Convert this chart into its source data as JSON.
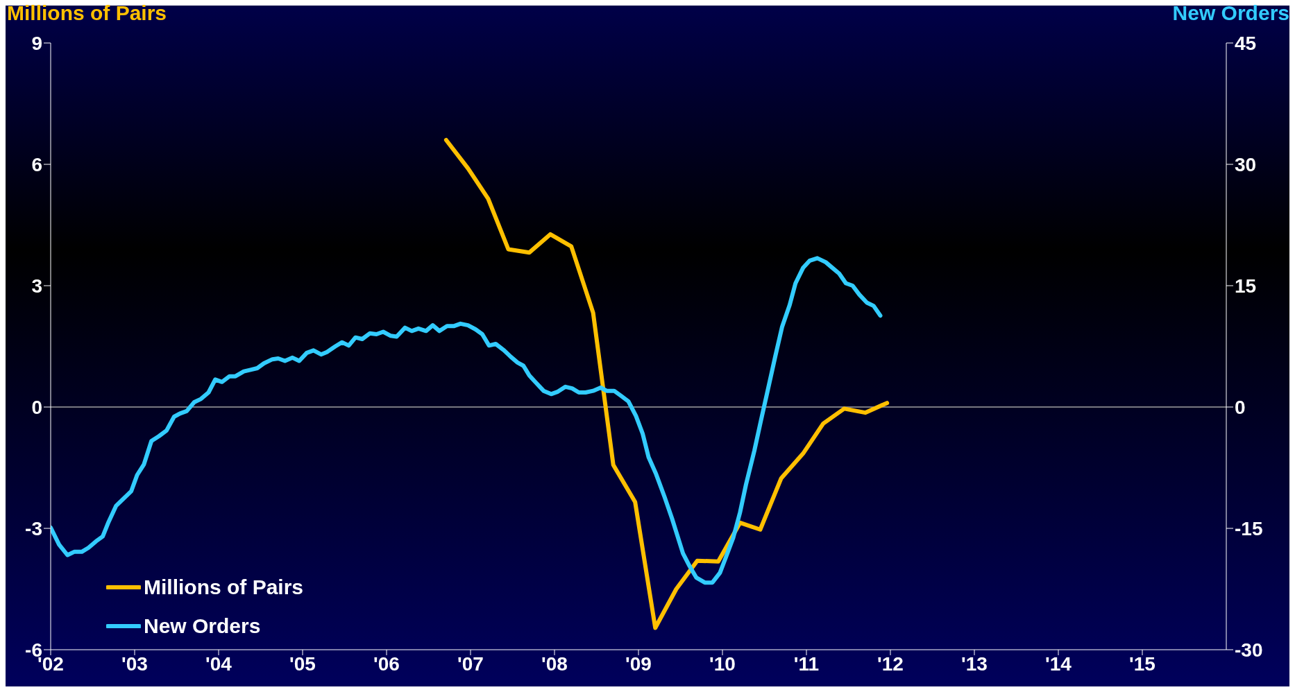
{
  "chart_data": {
    "type": "line",
    "ylabel": "Millions of Pairs",
    "y2label": "New Orders",
    "xlim": [
      2002,
      2016
    ],
    "xticks": [
      {
        "value": 2002,
        "label": "'02"
      },
      {
        "value": 2003,
        "label": "'03"
      },
      {
        "value": 2004,
        "label": "'04"
      },
      {
        "value": 2005,
        "label": "'05"
      },
      {
        "value": 2006,
        "label": "'06"
      },
      {
        "value": 2007,
        "label": "'07"
      },
      {
        "value": 2008,
        "label": "'08"
      },
      {
        "value": 2009,
        "label": "'09"
      },
      {
        "value": 2010,
        "label": "'10"
      },
      {
        "value": 2011,
        "label": "'11"
      },
      {
        "value": 2012,
        "label": "'12"
      },
      {
        "value": 2013,
        "label": "'13"
      },
      {
        "value": 2014,
        "label": "'14"
      },
      {
        "value": 2015,
        "label": "'15"
      }
    ],
    "ylim": [
      -6,
      9
    ],
    "yticks": [
      -6,
      -3,
      0,
      3,
      6,
      9
    ],
    "y2lim": [
      -30,
      45
    ],
    "y2ticks": [
      -30,
      -15,
      0,
      15,
      30,
      45
    ],
    "legend": "bottom left",
    "line_style": "solid",
    "ref_lines": [
      {
        "axis": "y",
        "value": 0,
        "color": "#a0a0a0"
      }
    ],
    "series": [
      {
        "name": "Millions of Pairs",
        "color": "#ffc000",
        "x": [
          2006.71,
          2006.97,
          2007.21,
          2007.45,
          2007.7,
          2007.95,
          2008.2,
          2008.46,
          2008.7,
          2008.96,
          2009.2,
          2009.45,
          2009.7,
          2009.95,
          2010.21,
          2010.45,
          2010.7,
          2010.96,
          2011.2,
          2011.45,
          2011.7,
          2011.96
        ],
        "values": [
          6.6,
          5.9,
          5.15,
          3.9,
          3.82,
          4.27,
          3.97,
          2.33,
          -1.43,
          -2.35,
          -5.46,
          -4.5,
          -3.8,
          -3.82,
          -2.86,
          -3.03,
          -1.76,
          -1.15,
          -0.41,
          -0.04,
          -0.14,
          0.1
        ]
      },
      {
        "name": "New Orders",
        "color": "#33ccff",
        "axis": "y2",
        "x": [
          2002,
          2002.1,
          2002.2,
          2002.28,
          2002.37,
          2002.45,
          2002.54,
          2002.62,
          2002.69,
          2002.78,
          2002.87,
          2002.96,
          2003.03,
          2003.11,
          2003.2,
          2003.29,
          2003.38,
          2003.47,
          2003.54,
          2003.62,
          2003.71,
          2003.79,
          2003.88,
          2003.96,
          2004.04,
          2004.13,
          2004.2,
          2004.3,
          2004.38,
          2004.46,
          2004.54,
          2004.64,
          2004.71,
          2004.79,
          2004.88,
          2004.96,
          2005.05,
          2005.13,
          2005.22,
          2005.29,
          2005.39,
          2005.47,
          2005.55,
          2005.63,
          2005.71,
          2005.8,
          2005.88,
          2005.96,
          2006.05,
          2006.12,
          2006.22,
          2006.3,
          2006.38,
          2006.47,
          2006.55,
          2006.63,
          2006.72,
          2006.8,
          2006.88,
          2006.97,
          2007.06,
          2007.14,
          2007.22,
          2007.3,
          2007.4,
          2007.48,
          2007.56,
          2007.63,
          2007.7,
          2007.78,
          2007.87,
          2007.96,
          2008.04,
          2008.13,
          2008.21,
          2008.29,
          2008.37,
          2008.46,
          2008.55,
          2008.62,
          2008.71,
          2008.79,
          2008.88,
          2008.97,
          2009.05,
          2009.12,
          2009.21,
          2009.31,
          2009.4,
          2009.53,
          2009.61,
          2009.69,
          2009.79,
          2009.88,
          2009.97,
          2010.04,
          2010.13,
          2010.21,
          2010.28,
          2010.38,
          2010.46,
          2010.54,
          2010.63,
          2010.71,
          2010.8,
          2010.87,
          2010.96,
          2011.04,
          2011.13,
          2011.23,
          2011.31,
          2011.39,
          2011.47,
          2011.55,
          2011.63,
          2011.72,
          2011.8,
          2011.88
        ],
        "values": [
          -14.9,
          -17.0,
          -18.3,
          -17.9,
          -17.9,
          -17.4,
          -16.6,
          -16.0,
          -14.2,
          -12.2,
          -11.3,
          -10.4,
          -8.4,
          -7.1,
          -4.2,
          -3.6,
          -2.9,
          -1.2,
          -0.8,
          -0.5,
          0.6,
          1.0,
          1.8,
          3.4,
          3.1,
          3.8,
          3.8,
          4.4,
          4.6,
          4.8,
          5.4,
          5.9,
          6.0,
          5.7,
          6.1,
          5.7,
          6.7,
          7.0,
          6.5,
          6.8,
          7.5,
          8.0,
          7.6,
          8.6,
          8.4,
          9.1,
          9.0,
          9.3,
          8.8,
          8.7,
          9.8,
          9.4,
          9.7,
          9.4,
          10.1,
          9.4,
          10.0,
          10.0,
          10.3,
          10.1,
          9.6,
          9.0,
          7.6,
          7.8,
          7.0,
          6.2,
          5.5,
          5.1,
          3.9,
          3.0,
          2.0,
          1.6,
          1.9,
          2.5,
          2.3,
          1.8,
          1.8,
          2.0,
          2.4,
          2.0,
          2.0,
          1.4,
          0.7,
          -1.1,
          -3.3,
          -6.2,
          -8.3,
          -11.1,
          -13.8,
          -18.1,
          -19.7,
          -21.1,
          -21.7,
          -21.7,
          -20.5,
          -18.6,
          -16.1,
          -13.0,
          -9.6,
          -5.4,
          -1.6,
          2.1,
          6.3,
          9.9,
          12.6,
          15.3,
          17.2,
          18.1,
          18.4,
          17.9,
          17.2,
          16.5,
          15.3,
          15.0,
          13.9,
          12.9,
          12.5,
          11.3
        ]
      }
    ]
  }
}
